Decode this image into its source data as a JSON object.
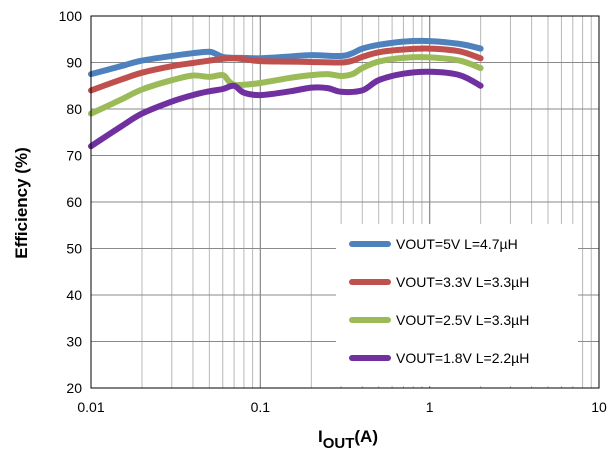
{
  "chart_data": {
    "type": "line",
    "xlabel_main": "I",
    "xlabel_sub": "OUT",
    "xlabel_unit": "(A)",
    "ylabel": "Efficiency (%)",
    "xscale": "log",
    "xlim": [
      0.01,
      10
    ],
    "ylim": [
      20,
      100
    ],
    "x_tick_labels": [
      "0.01",
      "0.1",
      "1",
      "10"
    ],
    "y_tick_labels": [
      "20",
      "30",
      "40",
      "50",
      "60",
      "70",
      "80",
      "90",
      "100"
    ],
    "grid": true,
    "legend_position": "bottom-right",
    "series": [
      {
        "name": "VOUT=5V L=4.7µH",
        "color": "#4F81BD",
        "points": [
          [
            0.01,
            87.5
          ],
          [
            0.015,
            89.2
          ],
          [
            0.02,
            90.4
          ],
          [
            0.03,
            91.4
          ],
          [
            0.04,
            92.0
          ],
          [
            0.05,
            92.3
          ],
          [
            0.055,
            91.8
          ],
          [
            0.06,
            91.2
          ],
          [
            0.07,
            91.0
          ],
          [
            0.08,
            91.0
          ],
          [
            0.1,
            90.9
          ],
          [
            0.15,
            91.3
          ],
          [
            0.2,
            91.6
          ],
          [
            0.3,
            91.4
          ],
          [
            0.35,
            92.0
          ],
          [
            0.4,
            93.0
          ],
          [
            0.5,
            93.8
          ],
          [
            0.7,
            94.5
          ],
          [
            1.0,
            94.6
          ],
          [
            1.5,
            94.0
          ],
          [
            2.0,
            93.0
          ]
        ]
      },
      {
        "name": "VOUT=3.3V L=3.3µH",
        "color": "#C0504D",
        "points": [
          [
            0.01,
            84.0
          ],
          [
            0.015,
            86.3
          ],
          [
            0.02,
            87.8
          ],
          [
            0.03,
            89.2
          ],
          [
            0.04,
            89.9
          ],
          [
            0.05,
            90.4
          ],
          [
            0.06,
            90.8
          ],
          [
            0.07,
            90.9
          ],
          [
            0.08,
            90.7
          ],
          [
            0.1,
            90.3
          ],
          [
            0.15,
            90.2
          ],
          [
            0.2,
            90.1
          ],
          [
            0.3,
            90.0
          ],
          [
            0.35,
            90.4
          ],
          [
            0.4,
            91.2
          ],
          [
            0.5,
            92.2
          ],
          [
            0.7,
            92.8
          ],
          [
            1.0,
            93.0
          ],
          [
            1.5,
            92.4
          ],
          [
            2.0,
            90.9
          ]
        ]
      },
      {
        "name": "VOUT=2.5V L=3.3µH",
        "color": "#9BBB59",
        "points": [
          [
            0.01,
            79.0
          ],
          [
            0.015,
            82.0
          ],
          [
            0.02,
            84.2
          ],
          [
            0.03,
            86.2
          ],
          [
            0.04,
            87.2
          ],
          [
            0.05,
            86.9
          ],
          [
            0.06,
            87.3
          ],
          [
            0.065,
            86.0
          ],
          [
            0.07,
            85.2
          ],
          [
            0.08,
            85.2
          ],
          [
            0.1,
            85.6
          ],
          [
            0.15,
            86.7
          ],
          [
            0.2,
            87.3
          ],
          [
            0.25,
            87.5
          ],
          [
            0.3,
            87.1
          ],
          [
            0.35,
            87.5
          ],
          [
            0.4,
            88.8
          ],
          [
            0.5,
            90.2
          ],
          [
            0.7,
            91.0
          ],
          [
            1.0,
            91.1
          ],
          [
            1.5,
            90.4
          ],
          [
            2.0,
            88.8
          ]
        ]
      },
      {
        "name": "VOUT=1.8V L=2.2µH",
        "color": "#7030A0",
        "points": [
          [
            0.01,
            72.0
          ],
          [
            0.015,
            76.2
          ],
          [
            0.02,
            79.0
          ],
          [
            0.03,
            81.6
          ],
          [
            0.04,
            83.0
          ],
          [
            0.05,
            83.8
          ],
          [
            0.06,
            84.3
          ],
          [
            0.07,
            85.0
          ],
          [
            0.08,
            83.5
          ],
          [
            0.1,
            83.0
          ],
          [
            0.15,
            83.8
          ],
          [
            0.2,
            84.6
          ],
          [
            0.25,
            84.5
          ],
          [
            0.3,
            83.7
          ],
          [
            0.4,
            84.0
          ],
          [
            0.5,
            86.2
          ],
          [
            0.7,
            87.6
          ],
          [
            1.0,
            88.0
          ],
          [
            1.5,
            87.3
          ],
          [
            2.0,
            85.0
          ]
        ]
      }
    ]
  }
}
